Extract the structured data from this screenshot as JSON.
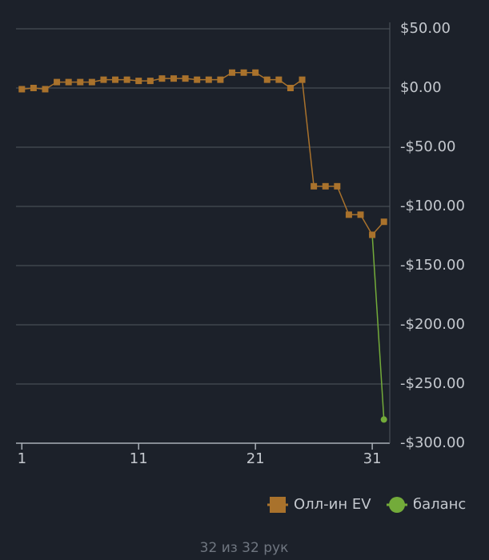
{
  "chart_data": {
    "type": "line",
    "x": [
      1,
      2,
      3,
      4,
      5,
      6,
      7,
      8,
      9,
      10,
      11,
      12,
      13,
      14,
      15,
      16,
      17,
      18,
      19,
      20,
      21,
      22,
      23,
      24,
      25,
      26,
      27,
      28,
      29,
      30,
      31,
      32
    ],
    "xlim": [
      0.5,
      32.5
    ],
    "xticks": [
      1,
      11,
      21,
      31
    ],
    "ylim": [
      -300,
      50
    ],
    "yticks": [
      {
        "value": 50,
        "label": "$50.00"
      },
      {
        "value": 0,
        "label": "$0.00"
      },
      {
        "value": -50,
        "label": "-$50.00"
      },
      {
        "value": -100,
        "label": "-$100.00"
      },
      {
        "value": -150,
        "label": "-$150.00"
      },
      {
        "value": -200,
        "label": "-$200.00"
      },
      {
        "value": -250,
        "label": "-$250.00"
      },
      {
        "value": -300,
        "label": "-$300.00"
      }
    ],
    "grid": true,
    "legend": "bottom-right",
    "series": [
      {
        "name": "Олл-ин EV",
        "color": "#a9722c",
        "marker": "square",
        "values": [
          -1,
          0,
          -1,
          5,
          5,
          5,
          5,
          7,
          7,
          7,
          6,
          6,
          8,
          8,
          8,
          7,
          7,
          7,
          13,
          13,
          13,
          7,
          7,
          0,
          7,
          -83,
          -83,
          -83,
          -107,
          -107,
          -124,
          -113
        ]
      },
      {
        "name": "баланс",
        "color": "#73ab3a",
        "marker": "circle",
        "values": [
          null,
          null,
          null,
          null,
          null,
          null,
          null,
          null,
          null,
          null,
          null,
          null,
          null,
          null,
          null,
          null,
          null,
          null,
          null,
          null,
          null,
          null,
          null,
          null,
          null,
          null,
          null,
          null,
          null,
          null,
          -124,
          -280
        ]
      }
    ],
    "footer": "32 из 32 рук"
  }
}
